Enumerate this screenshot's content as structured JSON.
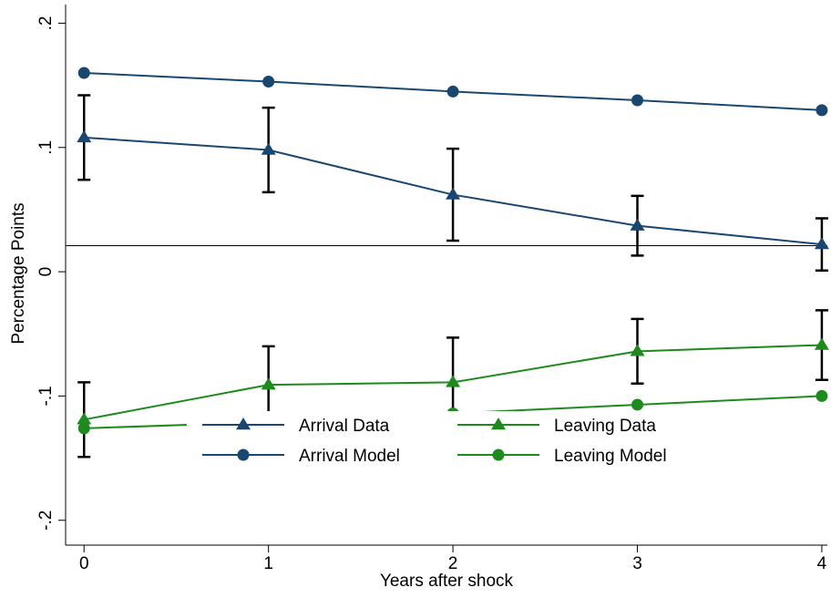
{
  "chart_data": {
    "type": "line",
    "xlabel": "Years after shock",
    "ylabel": "Percentage Points",
    "x": [
      0,
      1,
      2,
      3,
      4
    ],
    "xlim": [
      -0.1,
      4.03
    ],
    "ylim": [
      -0.22,
      0.215
    ],
    "xticks": [
      0,
      1,
      2,
      3,
      4
    ],
    "yticks": [
      {
        "value": -0.2,
        "label": "-.2"
      },
      {
        "value": -0.1,
        "label": "-.1"
      },
      0,
      {
        "value": 0.1,
        "label": ".1"
      },
      {
        "value": 0.2,
        "label": ".2"
      }
    ],
    "reference_line": 0.021,
    "series": [
      {
        "name": "Arrival Data",
        "color": "#1a476f",
        "marker": "triangle",
        "values": [
          0.108,
          0.098,
          0.062,
          0.037,
          0.022
        ],
        "errors": [
          0.034,
          0.034,
          0.037,
          0.024,
          0.021
        ]
      },
      {
        "name": "Arrival Model",
        "color": "#1a476f",
        "marker": "circle",
        "values": [
          0.16,
          0.153,
          0.145,
          0.138,
          0.13
        ]
      },
      {
        "name": "Leaving Data",
        "color": "#1e8a1e",
        "marker": "triangle",
        "values": [
          -0.119,
          -0.091,
          -0.089,
          -0.064,
          -0.059
        ],
        "errors": [
          0.03,
          0.031,
          0.036,
          0.026,
          0.028
        ]
      },
      {
        "name": "Leaving Model",
        "color": "#1e8a1e",
        "marker": "circle",
        "values": [
          -0.126,
          -0.121,
          -0.114,
          -0.107,
          -0.1
        ]
      }
    ]
  }
}
